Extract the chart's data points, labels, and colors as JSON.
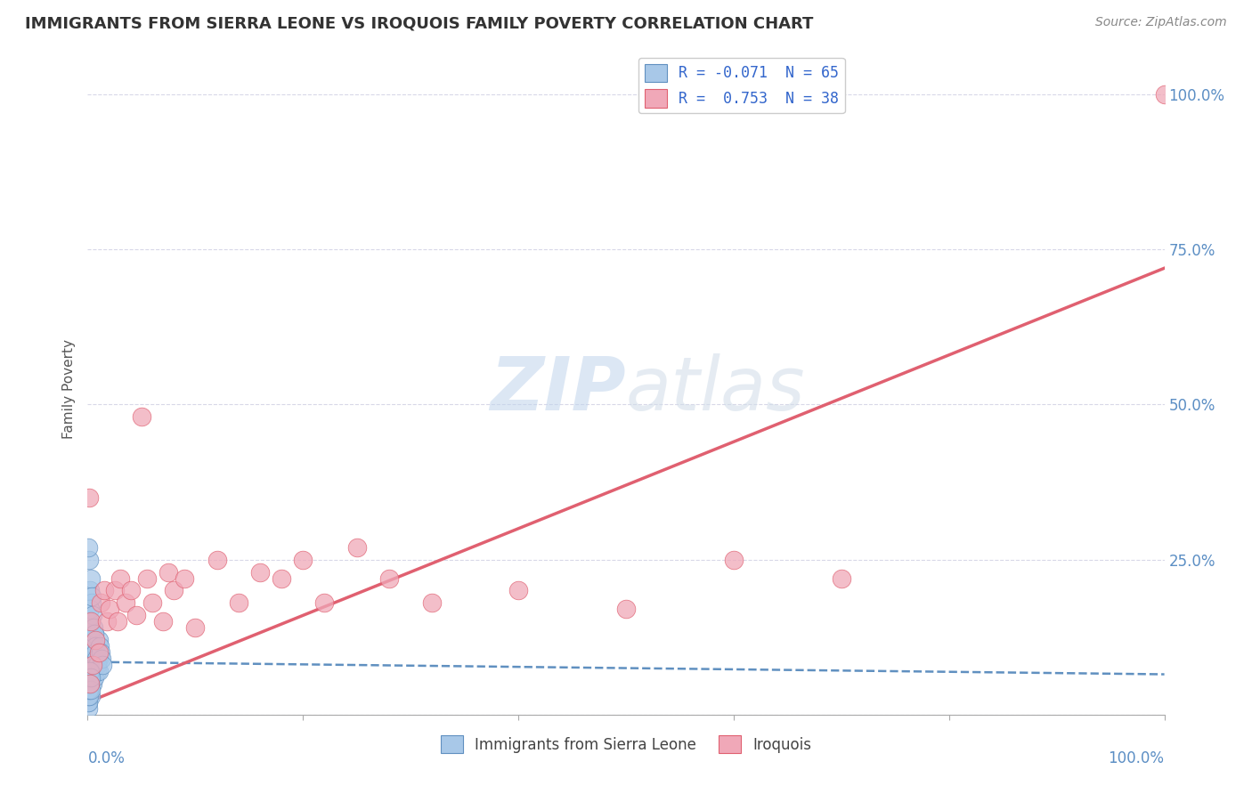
{
  "title": "IMMIGRANTS FROM SIERRA LEONE VS IROQUOIS FAMILY POVERTY CORRELATION CHART",
  "source": "Source: ZipAtlas.com",
  "ylabel": "Family Poverty",
  "y_tick_vals": [
    0.0,
    0.25,
    0.5,
    0.75,
    1.0
  ],
  "y_tick_labels": [
    "",
    "25.0%",
    "50.0%",
    "75.0%",
    "100.0%"
  ],
  "legend_line1": "R = -0.071  N = 65",
  "legend_line2": "R =  0.753  N = 38",
  "blue_color": "#a8c8e8",
  "blue_edge_color": "#6090c0",
  "pink_color": "#f0a8b8",
  "pink_edge_color": "#e06070",
  "blue_line_color": "#6090c0",
  "pink_line_color": "#e06070",
  "watermark": "ZIPatlas",
  "watermark_color": "#d0dff0",
  "grid_color": "#d8d8e8",
  "blue_R": -0.071,
  "pink_R": 0.753,
  "blue_intercept": 0.085,
  "blue_slope": -0.02,
  "pink_intercept": 0.02,
  "pink_slope": 0.7,
  "blue_scatter_x": [
    0.0002,
    0.0003,
    0.0005,
    0.0008,
    0.001,
    0.001,
    0.0012,
    0.0015,
    0.002,
    0.002,
    0.0022,
    0.0025,
    0.003,
    0.003,
    0.003,
    0.003,
    0.0035,
    0.004,
    0.004,
    0.0045,
    0.005,
    0.005,
    0.005,
    0.006,
    0.006,
    0.007,
    0.008,
    0.009,
    0.01,
    0.01,
    0.001,
    0.0005,
    0.002,
    0.003,
    0.004,
    0.0015,
    0.0025,
    0.0035,
    0.0045,
    0.0055,
    0.0065,
    0.007,
    0.0075,
    0.008,
    0.009,
    0.01,
    0.011,
    0.012,
    0.013,
    0.014,
    0.0001,
    0.0002,
    0.0004,
    0.0006,
    0.0007,
    0.0009,
    0.001,
    0.0011,
    0.0013,
    0.0016,
    0.0018,
    0.002,
    0.0022,
    0.0028,
    0.0032
  ],
  "blue_scatter_y": [
    0.02,
    0.04,
    0.15,
    0.08,
    0.12,
    0.06,
    0.1,
    0.07,
    0.09,
    0.13,
    0.05,
    0.11,
    0.08,
    0.14,
    0.06,
    0.03,
    0.1,
    0.07,
    0.12,
    0.09,
    0.05,
    0.08,
    0.11,
    0.06,
    0.13,
    0.08,
    0.1,
    0.07,
    0.09,
    0.12,
    0.25,
    0.27,
    0.2,
    0.22,
    0.18,
    0.15,
    0.17,
    0.19,
    0.16,
    0.14,
    0.13,
    0.11,
    0.1,
    0.09,
    0.08,
    0.07,
    0.11,
    0.1,
    0.09,
    0.08,
    0.01,
    0.02,
    0.03,
    0.04,
    0.05,
    0.06,
    0.07,
    0.03,
    0.04,
    0.05,
    0.06,
    0.07,
    0.05,
    0.04,
    0.06
  ],
  "pink_scatter_x": [
    0.001,
    0.002,
    0.003,
    0.005,
    0.007,
    0.01,
    0.012,
    0.015,
    0.018,
    0.02,
    0.025,
    0.028,
    0.03,
    0.035,
    0.04,
    0.045,
    0.05,
    0.055,
    0.06,
    0.07,
    0.075,
    0.08,
    0.09,
    0.1,
    0.12,
    0.14,
    0.16,
    0.18,
    0.2,
    0.22,
    0.25,
    0.28,
    0.32,
    0.4,
    0.5,
    0.6,
    0.7,
    1.0
  ],
  "pink_scatter_y": [
    0.35,
    0.05,
    0.15,
    0.08,
    0.12,
    0.1,
    0.18,
    0.2,
    0.15,
    0.17,
    0.2,
    0.15,
    0.22,
    0.18,
    0.2,
    0.16,
    0.48,
    0.22,
    0.18,
    0.15,
    0.23,
    0.2,
    0.22,
    0.14,
    0.25,
    0.18,
    0.23,
    0.22,
    0.25,
    0.18,
    0.27,
    0.22,
    0.18,
    0.2,
    0.17,
    0.25,
    0.22,
    1.0
  ]
}
